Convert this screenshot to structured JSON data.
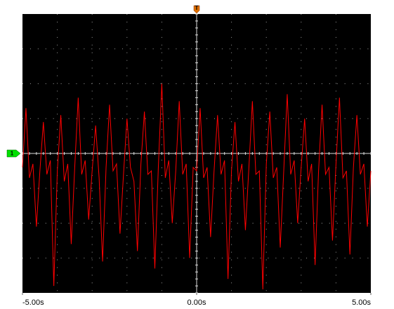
{
  "chart_data": {
    "type": "line",
    "trigger_marker": "T",
    "channel_marker": "1",
    "color": "#ff0000",
    "xlim": [
      -5,
      5
    ],
    "ylim": [
      -4,
      4
    ],
    "xticks": [
      {
        "value": -5,
        "label": "-5.00s"
      },
      {
        "value": 0,
        "label": "0.00s"
      },
      {
        "value": 5,
        "label": "5.00s"
      }
    ],
    "x": [
      -5.0,
      -4.9,
      -4.8,
      -4.7,
      -4.6,
      -4.5,
      -4.4,
      -4.3,
      -4.2,
      -4.1,
      -4.0,
      -3.9,
      -3.8,
      -3.7,
      -3.6,
      -3.5,
      -3.4,
      -3.3,
      -3.2,
      -3.1,
      -3.0,
      -2.9,
      -2.8,
      -2.7,
      -2.6,
      -2.5,
      -2.4,
      -2.3,
      -2.2,
      -2.1,
      -2.0,
      -1.9,
      -1.8,
      -1.7,
      -1.6,
      -1.5,
      -1.4,
      -1.3,
      -1.2,
      -1.1,
      -1.0,
      -0.9,
      -0.8,
      -0.7,
      -0.6,
      -0.5,
      -0.4,
      -0.3,
      -0.2,
      -0.1,
      0.0,
      0.1,
      0.2,
      0.3,
      0.4,
      0.5,
      0.6,
      0.7,
      0.8,
      0.9,
      1.0,
      1.1,
      1.2,
      1.3,
      1.4,
      1.5,
      1.6,
      1.7,
      1.8,
      1.9,
      2.0,
      2.1,
      2.2,
      2.3,
      2.4,
      2.5,
      2.6,
      2.7,
      2.8,
      2.9,
      3.0,
      3.1,
      3.2,
      3.3,
      3.4,
      3.5,
      3.6,
      3.7,
      3.8,
      3.9,
      4.0,
      4.1,
      4.2,
      4.3,
      4.4,
      4.5,
      4.6,
      4.7,
      4.8,
      4.9,
      5.0
    ],
    "values": [
      -0.4,
      1.3,
      -0.7,
      -0.3,
      -2.1,
      -0.5,
      0.9,
      -0.6,
      -0.2,
      -3.8,
      -0.5,
      1.1,
      -0.8,
      -0.3,
      -2.6,
      -0.4,
      1.6,
      -0.6,
      -0.2,
      -1.9,
      -0.5,
      0.8,
      -0.7,
      -3.1,
      -0.4,
      1.4,
      -0.5,
      -0.3,
      -2.3,
      -0.6,
      1.0,
      -0.4,
      -0.8,
      -2.8,
      -0.3,
      1.2,
      -0.6,
      -0.5,
      -3.3,
      -0.4,
      2.0,
      -0.7,
      -0.2,
      -2.0,
      -0.5,
      1.5,
      -0.6,
      -0.3,
      -3.0,
      -0.4,
      -0.5,
      1.3,
      -0.7,
      -0.4,
      -2.4,
      -0.5,
      1.1,
      -0.6,
      -0.2,
      -3.6,
      -0.5,
      0.9,
      -0.8,
      -0.3,
      -2.2,
      -0.4,
      1.5,
      -0.6,
      -0.5,
      -3.9,
      -0.3,
      1.2,
      -0.7,
      -0.4,
      -2.7,
      -0.5,
      1.7,
      -0.6,
      -0.2,
      -2.0,
      -0.4,
      1.0,
      -0.8,
      -0.3,
      -3.2,
      -0.5,
      1.4,
      -0.6,
      -0.4,
      -2.5,
      -0.3,
      1.6,
      -0.7,
      -0.5,
      -2.9,
      -0.4,
      1.1,
      -0.6,
      -0.3,
      -2.1,
      -0.5
    ]
  }
}
